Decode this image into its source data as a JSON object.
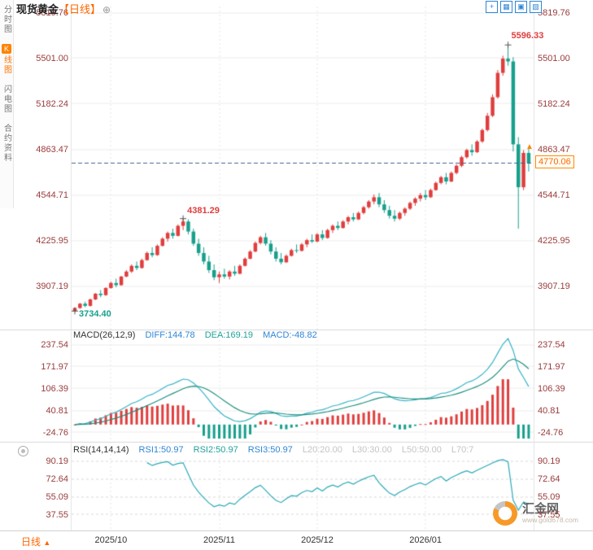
{
  "app": {
    "title_symbol": "现货黄金",
    "title_period": "【日线】",
    "add_icon_glyph": "⊕"
  },
  "sidebar": {
    "items": [
      {
        "badge": "",
        "label": "分时图",
        "active": false
      },
      {
        "badge": "K",
        "label": "线图",
        "active": true
      },
      {
        "badge": "",
        "label": "闪电图",
        "active": false
      },
      {
        "badge": "",
        "label": "合约资料",
        "active": false
      }
    ]
  },
  "toolbar": {
    "icons": [
      "+",
      "▦",
      "▣",
      "▧"
    ]
  },
  "price_axis": {
    "ticks": [
      "5819.76",
      "5501.00",
      "5182.24",
      "4863.47",
      "4544.71",
      "4225.95",
      "3907.19"
    ]
  },
  "annotations": {
    "high": "5596.33",
    "peak": "4381.29",
    "low": "3734.40",
    "last_price": "4770.06",
    "arrow": "▲"
  },
  "macd": {
    "header": "MACD(26,12,9)",
    "diff_label": "DIFF:144.78",
    "dea_label": "DEA:169.19",
    "macd_label": "MACD:-48.82",
    "ticks": [
      "237.54",
      "171.97",
      "106.39",
      "40.81",
      "-24.76"
    ]
  },
  "rsi": {
    "header": "RSI(14,14,14)",
    "rsi1": "RSI1:50.97",
    "rsi2": "RSI2:50.97",
    "rsi3": "RSI3:50.97",
    "l20": "L20:20.00",
    "l30": "L30:30.00",
    "l50": "L50:50.00",
    "l70": "L70:7",
    "ticks": [
      "90.19",
      "72.64",
      "55.09",
      "37.55"
    ]
  },
  "xaxis": {
    "labels": [
      "2025/10",
      "2025/11",
      "2025/12",
      "2026/01"
    ],
    "period_label": "日线",
    "period_arrow": "▲"
  },
  "watermark": {
    "name": "汇金网",
    "url": "www.gold678.com"
  },
  "colors": {
    "up": "#e03e3e",
    "down": "#17a08c",
    "accent": "#ff6600",
    "axis_text": "#9a3b3b",
    "diff_line": "#36b3c6",
    "dea_line": "#1e8e7e",
    "rsi_line": "#2aa8b8",
    "last_price_line": "#40618c",
    "grid": "#ececec",
    "tag_border": "#ff8a00"
  },
  "chart_data": {
    "type": "candlestick",
    "symbol": "现货黄金",
    "period": "日线",
    "ohlc_format": [
      "open",
      "high",
      "low",
      "close"
    ],
    "ylim": [
      3650,
      5865
    ],
    "y_ticks": [
      5819.76,
      5501.0,
      5182.24,
      4863.47,
      4544.71,
      4225.95,
      3907.19
    ],
    "x_tick_labels": [
      "2025/10",
      "2025/11",
      "2025/12",
      "2026/01"
    ],
    "x_tick_indices": [
      7,
      28,
      47,
      68
    ],
    "last_price": 4770.06,
    "marked_points": {
      "low": {
        "index": 0,
        "value": 3734.4
      },
      "peak": {
        "index": 21,
        "value": 4381.29
      },
      "high": {
        "index": 84,
        "value": 5596.33
      }
    },
    "candles": [
      [
        3735,
        3762,
        3734.4,
        3756
      ],
      [
        3756,
        3792,
        3750,
        3786
      ],
      [
        3786,
        3801,
        3761,
        3771
      ],
      [
        3771,
        3822,
        3766,
        3816
      ],
      [
        3816,
        3861,
        3811,
        3856
      ],
      [
        3856,
        3881,
        3831,
        3846
      ],
      [
        3846,
        3901,
        3841,
        3896
      ],
      [
        3896,
        3941,
        3891,
        3931
      ],
      [
        3931,
        3961,
        3901,
        3916
      ],
      [
        3916,
        3981,
        3911,
        3976
      ],
      [
        3976,
        4021,
        3971,
        4011
      ],
      [
        4011,
        4061,
        4001,
        4051
      ],
      [
        4051,
        4081,
        4021,
        4036
      ],
      [
        4036,
        4101,
        4031,
        4091
      ],
      [
        4091,
        4151,
        4086,
        4141
      ],
      [
        4141,
        4181,
        4111,
        4126
      ],
      [
        4126,
        4201,
        4121,
        4191
      ],
      [
        4191,
        4251,
        4186,
        4241
      ],
      [
        4241,
        4291,
        4221,
        4281
      ],
      [
        4281,
        4311,
        4241,
        4261
      ],
      [
        4261,
        4341,
        4256,
        4331
      ],
      [
        4331,
        4381.29,
        4301,
        4361
      ],
      [
        4361,
        4376,
        4271,
        4291
      ],
      [
        4291,
        4311,
        4191,
        4206
      ],
      [
        4206,
        4241,
        4121,
        4141
      ],
      [
        4141,
        4181,
        4061,
        4081
      ],
      [
        4081,
        4121,
        4001,
        4021
      ],
      [
        4021,
        4061,
        3951,
        3971
      ],
      [
        3971,
        4011,
        3931,
        3991
      ],
      [
        3991,
        4031,
        3961,
        3976
      ],
      [
        3976,
        4021,
        3956,
        4011
      ],
      [
        4011,
        4051,
        3981,
        3996
      ],
      [
        3996,
        4061,
        3991,
        4051
      ],
      [
        4051,
        4111,
        4046,
        4101
      ],
      [
        4101,
        4161,
        4096,
        4151
      ],
      [
        4151,
        4221,
        4146,
        4211
      ],
      [
        4211,
        4261,
        4201,
        4251
      ],
      [
        4251,
        4281,
        4191,
        4206
      ],
      [
        4206,
        4231,
        4131,
        4151
      ],
      [
        4151,
        4181,
        4081,
        4101
      ],
      [
        4101,
        4141,
        4061,
        4076
      ],
      [
        4076,
        4131,
        4071,
        4121
      ],
      [
        4121,
        4171,
        4116,
        4161
      ],
      [
        4161,
        4201,
        4141,
        4156
      ],
      [
        4156,
        4211,
        4151,
        4201
      ],
      [
        4201,
        4241,
        4181,
        4231
      ],
      [
        4231,
        4271,
        4211,
        4221
      ],
      [
        4221,
        4281,
        4216,
        4271
      ],
      [
        4271,
        4301,
        4231,
        4246
      ],
      [
        4246,
        4311,
        4241,
        4301
      ],
      [
        4301,
        4341,
        4281,
        4331
      ],
      [
        4331,
        4361,
        4301,
        4316
      ],
      [
        4316,
        4371,
        4311,
        4361
      ],
      [
        4361,
        4401,
        4341,
        4391
      ],
      [
        4391,
        4421,
        4361,
        4376
      ],
      [
        4376,
        4431,
        4371,
        4421
      ],
      [
        4421,
        4471,
        4411,
        4461
      ],
      [
        4461,
        4511,
        4451,
        4501
      ],
      [
        4501,
        4551,
        4481,
        4531
      ],
      [
        4531,
        4561,
        4461,
        4481
      ],
      [
        4481,
        4511,
        4421,
        4441
      ],
      [
        4441,
        4471,
        4381,
        4401
      ],
      [
        4401,
        4441,
        4361,
        4381
      ],
      [
        4381,
        4431,
        4371,
        4421
      ],
      [
        4421,
        4461,
        4401,
        4451
      ],
      [
        4451,
        4501,
        4441,
        4491
      ],
      [
        4491,
        4531,
        4471,
        4521
      ],
      [
        4521,
        4561,
        4501,
        4546
      ],
      [
        4546,
        4581,
        4511,
        4531
      ],
      [
        4531,
        4591,
        4526,
        4581
      ],
      [
        4581,
        4641,
        4576,
        4631
      ],
      [
        4631,
        4681,
        4621,
        4671
      ],
      [
        4671,
        4701,
        4621,
        4641
      ],
      [
        4641,
        4711,
        4636,
        4701
      ],
      [
        4701,
        4761,
        4691,
        4751
      ],
      [
        4751,
        4821,
        4741,
        4811
      ],
      [
        4811,
        4871,
        4801,
        4861
      ],
      [
        4861,
        4901,
        4821,
        4846
      ],
      [
        4846,
        4931,
        4841,
        4921
      ],
      [
        4921,
        5011,
        4911,
        5001
      ],
      [
        5001,
        5121,
        4991,
        5101
      ],
      [
        5101,
        5251,
        5091,
        5231
      ],
      [
        5231,
        5421,
        5221,
        5401
      ],
      [
        5401,
        5521,
        5381,
        5501
      ],
      [
        5501,
        5596.33,
        5451,
        5481
      ],
      [
        5481,
        5511,
        4851,
        4901
      ],
      [
        4901,
        4951,
        4311,
        4601
      ],
      [
        4601,
        4861,
        4581,
        4841
      ],
      [
        4841,
        4871,
        4711,
        4770.06
      ]
    ],
    "indicators": {
      "macd": {
        "params": [
          26,
          12,
          9
        ],
        "diff": 144.78,
        "dea": 169.19,
        "macd": -48.82,
        "y_ticks": [
          237.54,
          171.97,
          106.39,
          40.81,
          -24.76
        ]
      },
      "rsi": {
        "params": [
          14,
          14,
          14
        ],
        "rsi1": 50.97,
        "rsi2": 50.97,
        "rsi3": 50.97,
        "levels": {
          "L20": 20.0,
          "L30": 30.0,
          "L50": 50.0
        },
        "y_ticks": [
          90.19,
          72.64,
          55.09,
          37.55
        ]
      }
    }
  }
}
